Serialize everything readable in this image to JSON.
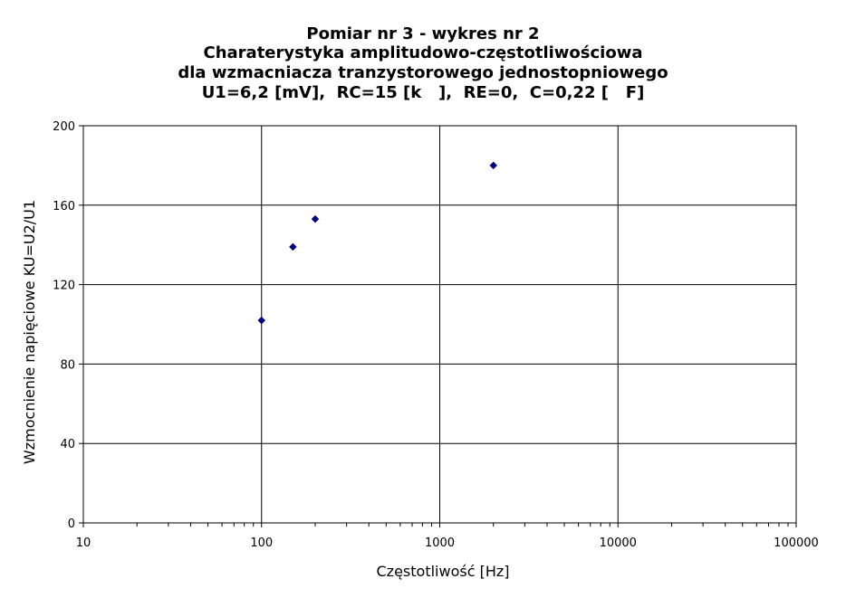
{
  "chart_data": {
    "type": "scatter",
    "title_lines": [
      "Pomiar nr 3 - wykres nr 2",
      "Charaterystyka amplitudowo-częstotliwościowa",
      "dla wzmacniacza tranzystorowego jednostopniowego",
      "U1=6,2 [mV],  RC=15 [k   ],  RE=0,  C=0,22 [   F]"
    ],
    "xlabel": "Częstotliwość [Hz]",
    "ylabel": "Wzmocnienie napięciowe KU=U2/U1",
    "x_scale": "log",
    "xlim": [
      10,
      100000
    ],
    "ylim": [
      0,
      200
    ],
    "x_ticks": [
      10,
      100,
      1000,
      10000,
      100000
    ],
    "x_tick_labels": [
      "10",
      "100",
      "1000",
      "10000",
      "100000"
    ],
    "y_ticks": [
      0,
      40,
      80,
      120,
      160,
      200
    ],
    "y_tick_labels": [
      "0",
      "40",
      "80",
      "120",
      "160",
      "200"
    ],
    "grid": true,
    "legend": "none",
    "marker": "diamond",
    "marker_color": "#000080",
    "series": [
      {
        "x": [
          100,
          150,
          200,
          2000
        ],
        "y": [
          102,
          139,
          153,
          180
        ]
      }
    ]
  }
}
